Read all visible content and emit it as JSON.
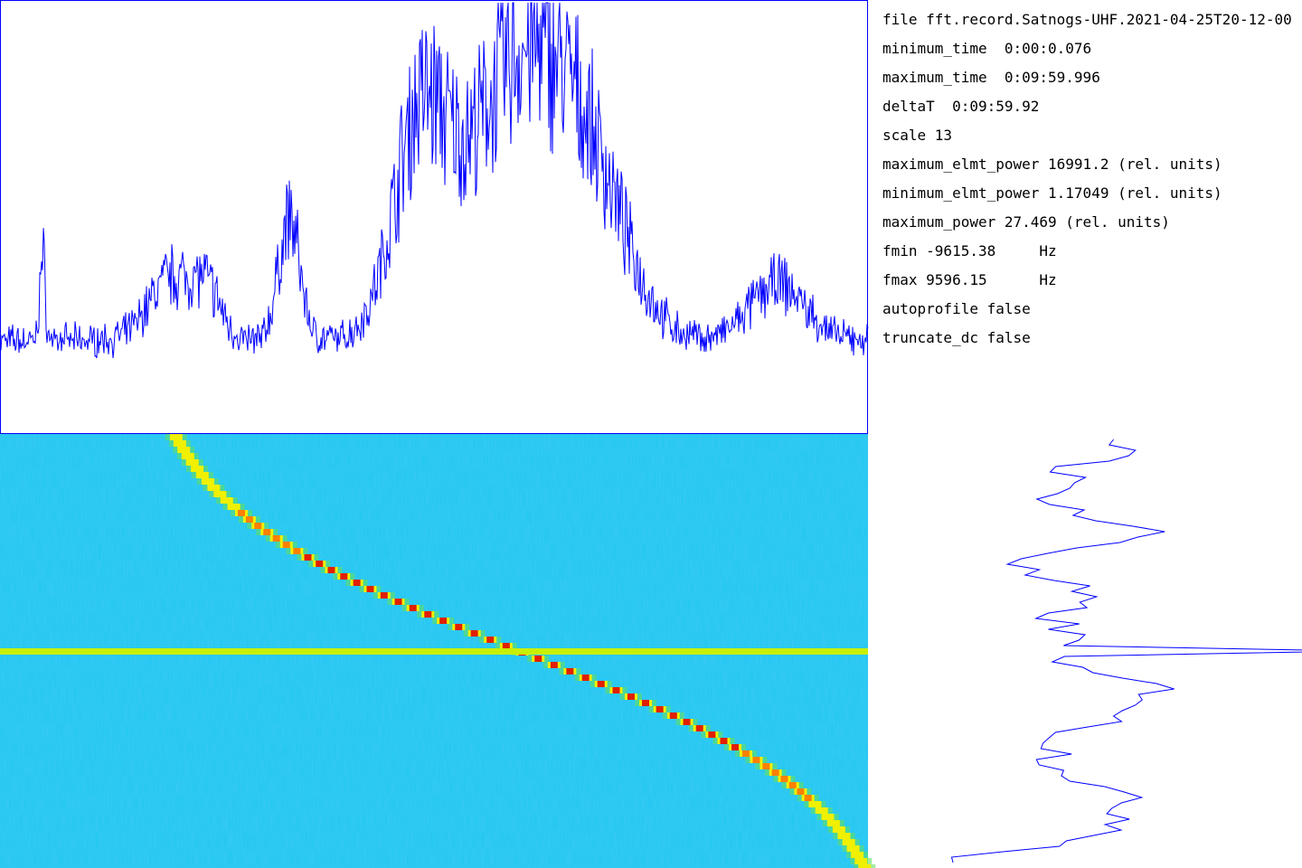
{
  "info": {
    "lines": [
      "file fft.record.Satnogs-UHF.2021-04-25T20-12-00",
      "minimum_time  0:00:0.076",
      "maximum_time  0:09:59.996",
      "deltaT  0:09:59.92",
      "scale 13",
      "maximum_elmt_power 16991.2 (rel. units)",
      "minimum_elmt_power 1.17049 (rel. units)",
      "maximum_power 27.469 (rel. units)",
      "fmin -9615.38     Hz",
      "fmax 9596.15      Hz",
      "autoprofile false",
      "truncate_dc false"
    ]
  }
}
